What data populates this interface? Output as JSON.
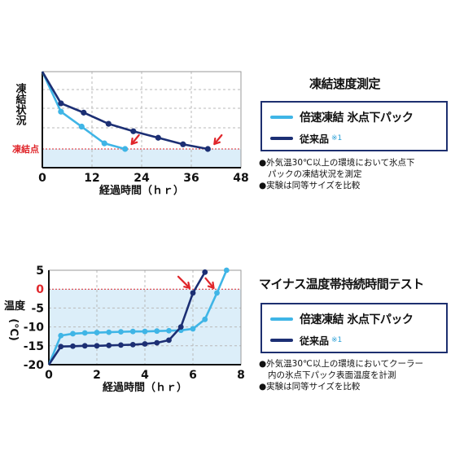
{
  "chart_data": [
    {
      "type": "line",
      "title": "凍結速度測定",
      "xlabel": "経過時間（ｈｒ）",
      "ylabel": "凍結状況",
      "xlim": [
        0,
        48
      ],
      "xticks": [
        "0",
        "12",
        "24",
        "36",
        "48"
      ],
      "freeze_label": "凍結点",
      "grid": "dashed",
      "series": [
        {
          "name": "倍速凍結 氷点下パック",
          "color": "#3fb5e6",
          "x": [
            0,
            4.5,
            9.5,
            15,
            20
          ],
          "y": [
            100,
            57,
            41,
            23,
            17
          ]
        },
        {
          "name": "従来品",
          "color": "#1c2f74",
          "x": [
            0,
            4.5,
            10,
            16,
            22,
            28,
            34,
            40
          ],
          "y": [
            100,
            66,
            56,
            44,
            36,
            29,
            22,
            17
          ]
        }
      ],
      "arrow_targets": [
        [
          20,
          17
        ],
        [
          40,
          17
        ]
      ],
      "notes": [
        "●外気温30℃以上の環境において氷点下",
        "パックの凍結状況を測定",
        "●実験は同等サイズを比較"
      ]
    },
    {
      "type": "line",
      "title": "マイナス温度帯持続時間テスト",
      "xlabel": "経過時間（ｈｒ）",
      "ylabel": "温度（℃）",
      "ylabel_top": "温度",
      "ylabel_bottom": "(℃)",
      "xlim": [
        0,
        8
      ],
      "ylim": [
        -20,
        5
      ],
      "xticks": [
        "0",
        "2",
        "4",
        "6",
        "8"
      ],
      "yticks": [
        "5",
        "0",
        "-5",
        "-10",
        "-15",
        "-20"
      ],
      "zero_label": "0",
      "series": [
        {
          "name": "倍速凍結 氷点下パック",
          "color": "#3fb5e6",
          "x": [
            0,
            0.5,
            1,
            1.5,
            2,
            2.5,
            3,
            3.5,
            4,
            4.5,
            5,
            5.5,
            6,
            6.5,
            7,
            7.4
          ],
          "y": [
            -20,
            -12.3,
            -11.8,
            -11.6,
            -11.5,
            -11.4,
            -11.3,
            -11.2,
            -11.2,
            -11.1,
            -11.0,
            -10.9,
            -10.5,
            -8,
            -1,
            5
          ]
        },
        {
          "name": "従来品",
          "color": "#1c2f74",
          "x": [
            0,
            0.5,
            1,
            1.5,
            2,
            2.5,
            3,
            3.5,
            4,
            4.5,
            5,
            5.5,
            6,
            6.5
          ],
          "y": [
            -20,
            -15.2,
            -15.1,
            -15.0,
            -15.0,
            -14.9,
            -14.8,
            -14.7,
            -14.5,
            -14.2,
            -13.5,
            -10,
            -1,
            4.5
          ]
        }
      ],
      "arrow_targets": [
        [
          6,
          -1
        ],
        [
          7,
          -1
        ]
      ],
      "notes": [
        "●外気温30℃以上の環境においてクーラー",
        "内の氷点下パック表面温度を計測",
        "●実験は同等サイズを比較"
      ]
    }
  ],
  "legend": {
    "primary": "倍速凍結 氷点下パック",
    "secondary": "従来品",
    "secondary_mark": "※1"
  }
}
